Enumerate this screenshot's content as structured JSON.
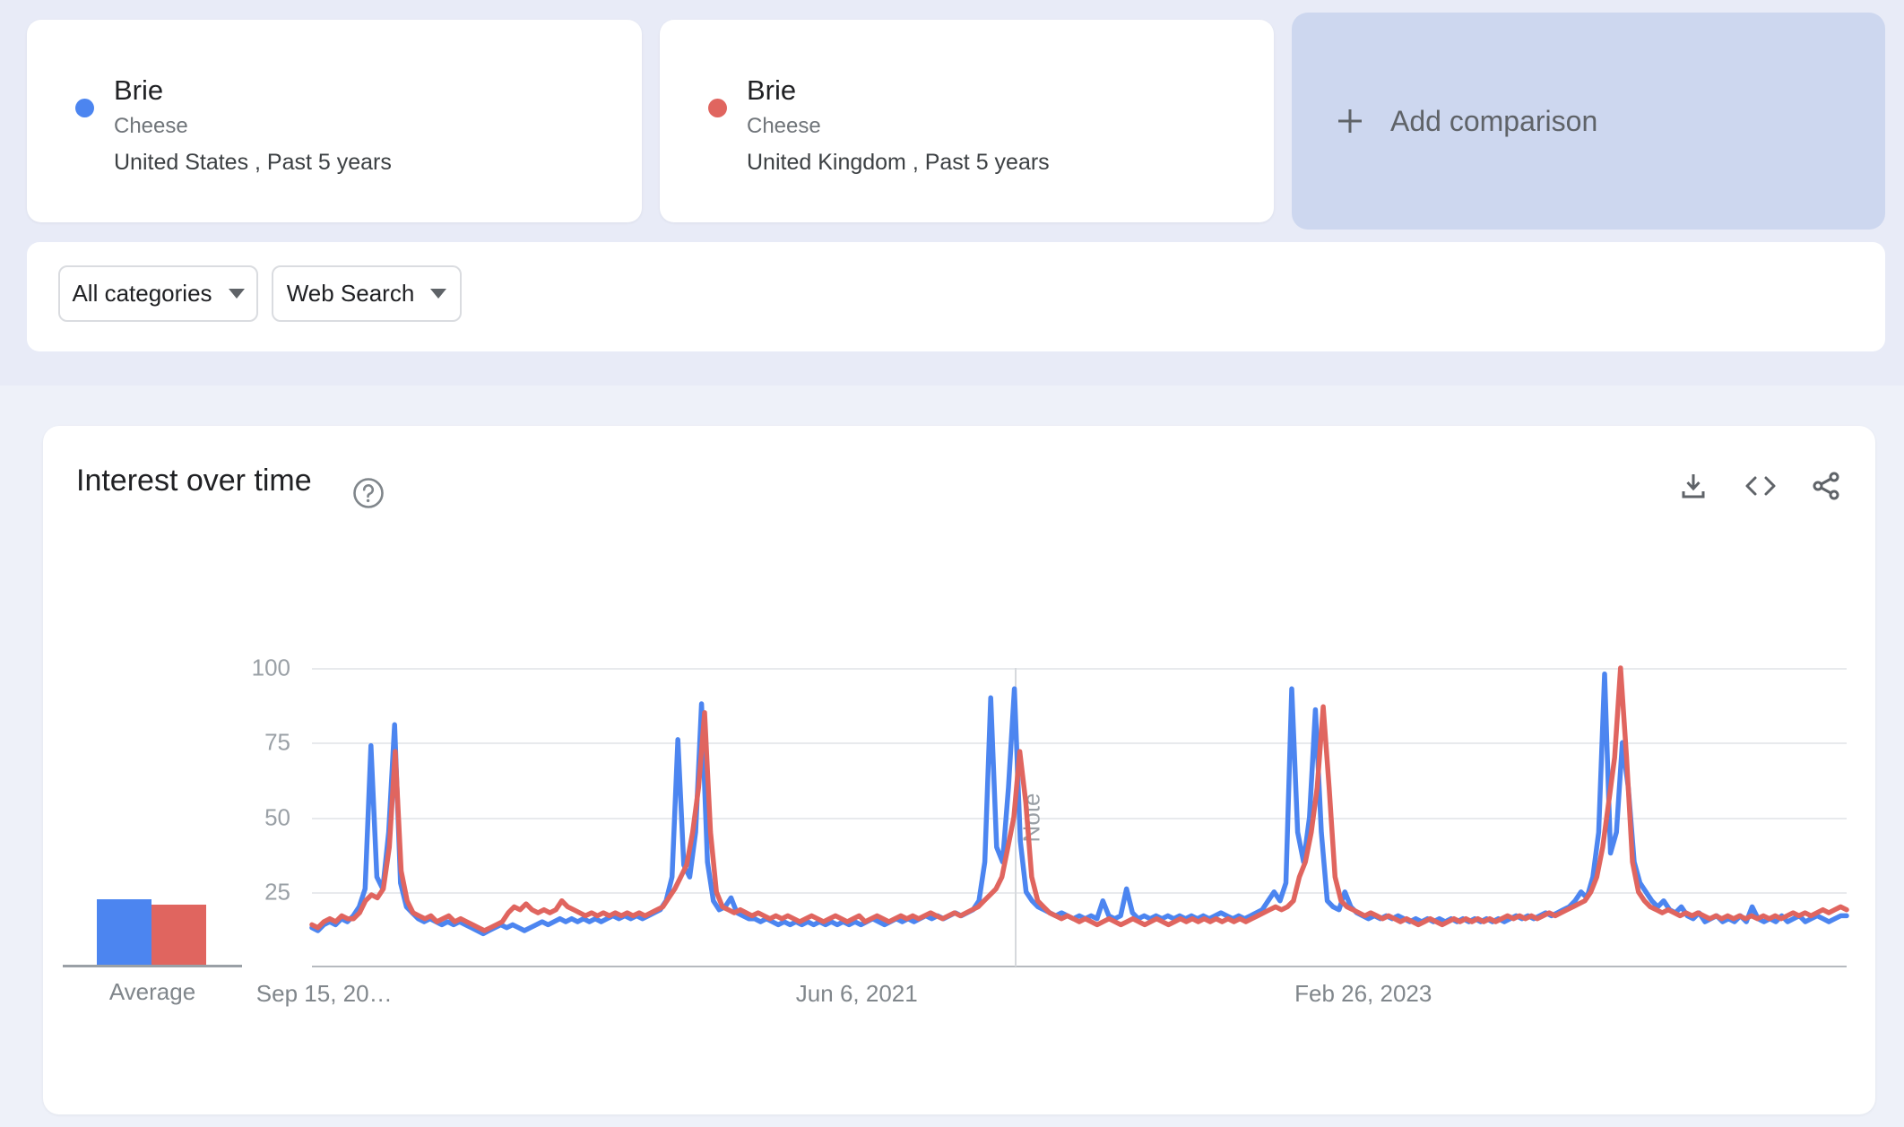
{
  "compare_bar": {
    "terms": [
      {
        "title": "Brie",
        "subtitle": "Cheese",
        "scope": "United States , Past 5 years",
        "color": "#4c85f0"
      },
      {
        "title": "Brie",
        "subtitle": "Cheese",
        "scope": "United Kingdom , Past 5 years",
        "color": "#e0655f"
      }
    ],
    "add_comparison_label": "Add comparison"
  },
  "filters": {
    "category": "All categories",
    "search_type": "Web Search"
  },
  "chart_data": {
    "type": "line",
    "title": "Interest over time",
    "ylim": [
      0,
      100
    ],
    "grid": true,
    "legend_position": "none",
    "y_ticks": [
      100,
      75,
      50,
      25
    ],
    "x_ticks": [
      {
        "label": "Sep 15, 20…",
        "pos": 0.008
      },
      {
        "label": "Jun 6, 2021",
        "pos": 0.355
      },
      {
        "label": "Feb 26, 2023",
        "pos": 0.685
      }
    ],
    "note_marker": {
      "label": "Note",
      "pos": 0.458
    },
    "x_unit": "weekly points, Sep 15 2019 - Sep 2024 (Past 5 years)",
    "average": {
      "label": "Average",
      "values": [
        {
          "name": "Brie (United States)",
          "value": 22,
          "color": "#4c85f0"
        },
        {
          "name": "Brie (United Kingdom)",
          "value": 20,
          "color": "#e0655f"
        }
      ]
    },
    "series": [
      {
        "name": "Brie — United States",
        "color": "#4c85f0",
        "values": [
          13,
          12,
          14,
          15,
          14,
          16,
          15,
          17,
          20,
          26,
          74,
          30,
          26,
          45,
          81,
          28,
          20,
          18,
          16,
          15,
          16,
          15,
          14,
          15,
          14,
          15,
          14,
          13,
          12,
          11,
          12,
          13,
          14,
          13,
          14,
          13,
          12,
          13,
          14,
          15,
          14,
          15,
          16,
          15,
          16,
          15,
          16,
          15,
          16,
          15,
          16,
          17,
          16,
          17,
          16,
          17,
          16,
          17,
          18,
          19,
          22,
          30,
          76,
          34,
          30,
          45,
          88,
          35,
          22,
          19,
          20,
          23,
          18,
          17,
          16,
          16,
          15,
          16,
          15,
          14,
          15,
          14,
          15,
          14,
          15,
          14,
          15,
          14,
          15,
          14,
          15,
          14,
          15,
          14,
          15,
          16,
          15,
          14,
          15,
          16,
          15,
          16,
          15,
          16,
          17,
          16,
          17,
          16,
          17,
          18,
          17,
          18,
          19,
          22,
          35,
          90,
          40,
          35,
          60,
          93,
          42,
          25,
          22,
          20,
          19,
          18,
          17,
          18,
          17,
          16,
          17,
          16,
          17,
          16,
          22,
          17,
          16,
          17,
          26,
          18,
          16,
          17,
          16,
          17,
          16,
          17,
          16,
          17,
          16,
          17,
          16,
          17,
          16,
          17,
          18,
          17,
          16,
          17,
          16,
          17,
          18,
          19,
          22,
          25,
          22,
          28,
          93,
          45,
          35,
          50,
          86,
          45,
          22,
          20,
          19,
          25,
          20,
          18,
          17,
          16,
          17,
          16,
          17,
          16,
          17,
          16,
          15,
          16,
          15,
          16,
          15,
          16,
          15,
          16,
          15,
          16,
          15,
          16,
          15,
          16,
          15,
          16,
          15,
          16,
          17,
          16,
          17,
          16,
          17,
          18,
          17,
          18,
          19,
          20,
          22,
          25,
          23,
          30,
          45,
          98,
          38,
          45,
          75,
          60,
          35,
          28,
          25,
          22,
          20,
          22,
          19,
          18,
          20,
          17,
          16,
          18,
          15,
          16,
          17,
          15,
          16,
          15,
          17,
          15,
          20,
          16,
          15,
          16,
          15,
          17,
          15,
          16,
          17,
          15,
          16,
          17,
          16,
          15,
          16,
          17,
          17
        ]
      },
      {
        "name": "Brie — United Kingdom",
        "color": "#e0655f",
        "values": [
          14,
          13,
          15,
          16,
          15,
          17,
          16,
          16,
          18,
          22,
          24,
          23,
          26,
          40,
          72,
          32,
          22,
          18,
          17,
          16,
          17,
          15,
          16,
          17,
          15,
          16,
          15,
          14,
          13,
          12,
          13,
          14,
          15,
          18,
          20,
          19,
          21,
          19,
          18,
          19,
          18,
          19,
          22,
          20,
          19,
          18,
          17,
          18,
          17,
          18,
          17,
          18,
          17,
          18,
          17,
          18,
          17,
          18,
          19,
          20,
          23,
          26,
          30,
          34,
          45,
          60,
          85,
          45,
          25,
          20,
          19,
          18,
          19,
          18,
          17,
          18,
          17,
          16,
          17,
          16,
          17,
          16,
          15,
          16,
          17,
          16,
          15,
          16,
          17,
          16,
          15,
          16,
          17,
          15,
          16,
          17,
          16,
          15,
          16,
          17,
          16,
          17,
          16,
          17,
          18,
          17,
          16,
          17,
          18,
          17,
          18,
          19,
          20,
          22,
          24,
          26,
          30,
          40,
          50,
          72,
          55,
          30,
          22,
          20,
          18,
          17,
          16,
          17,
          16,
          15,
          16,
          15,
          14,
          15,
          16,
          15,
          14,
          15,
          16,
          15,
          14,
          15,
          16,
          15,
          14,
          15,
          16,
          15,
          16,
          15,
          16,
          15,
          16,
          15,
          16,
          15,
          16,
          15,
          16,
          17,
          18,
          19,
          20,
          19,
          20,
          22,
          30,
          35,
          45,
          60,
          87,
          60,
          30,
          22,
          20,
          19,
          18,
          17,
          18,
          17,
          16,
          17,
          16,
          15,
          16,
          15,
          14,
          15,
          16,
          15,
          14,
          15,
          16,
          15,
          16,
          15,
          16,
          15,
          16,
          15,
          16,
          17,
          16,
          17,
          16,
          17,
          16,
          17,
          18,
          17,
          18,
          19,
          20,
          21,
          22,
          25,
          30,
          40,
          55,
          70,
          100,
          70,
          35,
          25,
          22,
          20,
          19,
          18,
          19,
          18,
          17,
          18,
          17,
          18,
          17,
          16,
          17,
          16,
          17,
          16,
          17,
          16,
          17,
          16,
          17,
          16,
          17,
          16,
          17,
          18,
          17,
          18,
          17,
          18,
          19,
          18,
          19,
          20,
          19
        ]
      }
    ]
  }
}
